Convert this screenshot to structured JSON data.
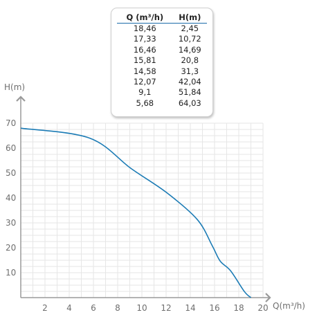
{
  "table": {
    "headers": [
      "Q (m³/h)",
      "H(m)"
    ],
    "rows": [
      [
        "18,46",
        "2,45"
      ],
      [
        "17,33",
        "10,72"
      ],
      [
        "16,46",
        "14,69"
      ],
      [
        "15,81",
        "20,8"
      ],
      [
        "14,58",
        "31,3"
      ],
      [
        "12,07",
        "42,04"
      ],
      [
        "9,1",
        "51,84"
      ],
      [
        "5,68",
        "64,03"
      ]
    ]
  },
  "chart_data": {
    "type": "line",
    "xlabel": "Q(m³/h)",
    "ylabel": "H(m)",
    "xlim": [
      0,
      20
    ],
    "ylim": [
      0,
      70
    ],
    "x_ticks": [
      "2",
      "4",
      "6",
      "8",
      "10",
      "12",
      "14",
      "16",
      "18",
      "20"
    ],
    "y_ticks": [
      "10",
      "20",
      "30",
      "40",
      "50",
      "60",
      "70"
    ],
    "grid": true,
    "series": [
      {
        "x": [
          0,
          5.68,
          9.1,
          12.07,
          14.58,
          15.81,
          16.46,
          17.33,
          18.46,
          19.0
        ],
        "y": [
          68,
          64.03,
          51.84,
          42.04,
          31.3,
          20.8,
          14.69,
          10.72,
          2.45,
          0
        ],
        "color": "#1b7bb5"
      }
    ]
  }
}
